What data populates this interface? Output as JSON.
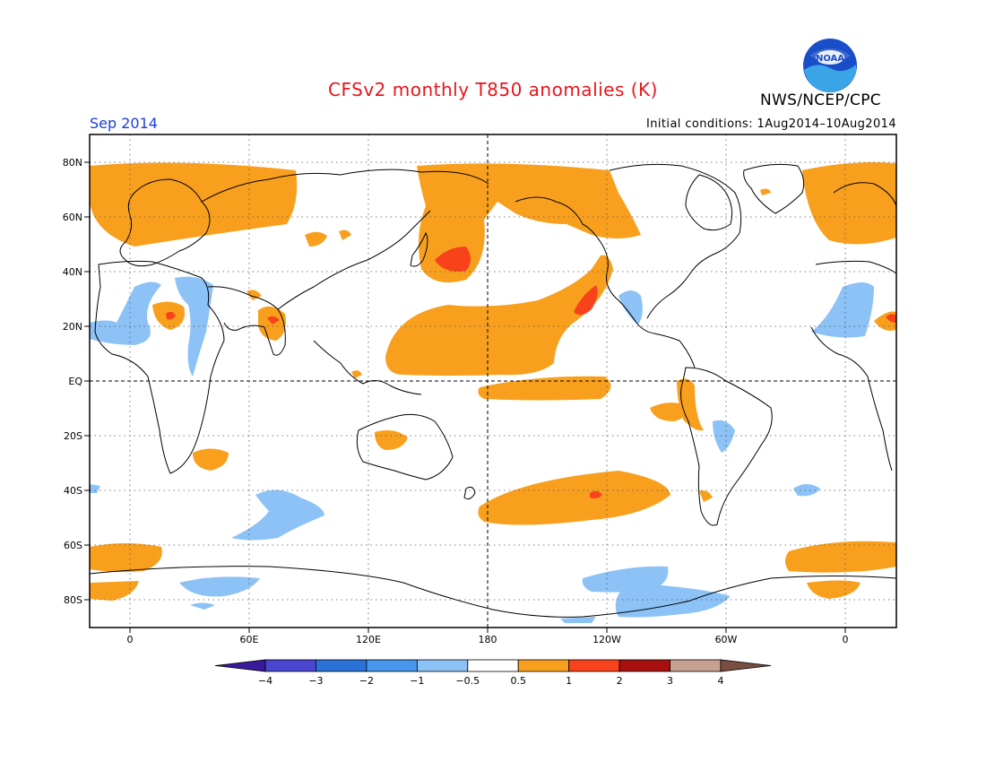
{
  "title": "CFSv2 monthly T850 anomalies (K)",
  "valid_month": "Sep 2014",
  "initial_conditions": "Initial conditions: 1Aug2014–10Aug2014",
  "agency": "NWS/NCEP/CPC",
  "logo_text": "NOAA",
  "lat_labels": [
    "80N",
    "60N",
    "40N",
    "20N",
    "EQ",
    "20S",
    "40S",
    "60S",
    "80S"
  ],
  "lon_labels": [
    "0",
    "60E",
    "120E",
    "180",
    "120W",
    "60W",
    "0"
  ],
  "colorbar": {
    "labels": [
      "−4",
      "−3",
      "−2",
      "−1",
      "−0.5",
      "0.5",
      "1",
      "2",
      "3",
      "4"
    ],
    "colors": [
      "#3a1a9a",
      "#4a46d0",
      "#2a72d8",
      "#4696ee",
      "#8cc2f6",
      "#ffffff",
      "#f8a01e",
      "#f7421c",
      "#a81010",
      "#c8a090",
      "#7a4e40"
    ]
  },
  "colors": {
    "title": "#e8161b",
    "valid_month": "#1a3fd6",
    "warm": "#f8a01e",
    "warm_strong": "#f7421c",
    "cool": "#8cc2f6"
  }
}
